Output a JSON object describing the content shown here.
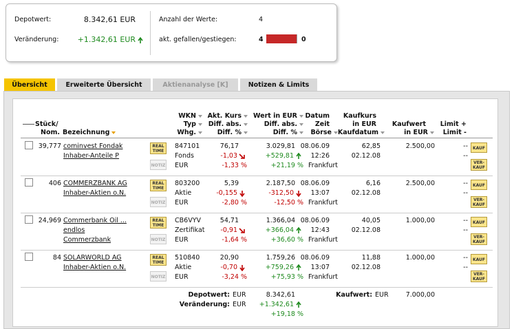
{
  "summary": {
    "depotwert_label": "Depotwert:",
    "depotwert": "8.342,61 EUR",
    "veraenderung_label": "Veränderung:",
    "veraenderung": "+1.342,61 EUR",
    "anzahl_label": "Anzahl der Werte:",
    "anzahl": 4,
    "gefallen_label": "akt. gefallen/gestiegen:",
    "gefallen": 4,
    "gestiegen": 0
  },
  "tabs": [
    "Übersicht",
    "Erweiterte Übersicht",
    "Aktienanalyse [K]",
    "Notizen & Limits"
  ],
  "table": {
    "headers": {
      "stueck": [
        "Stück/",
        "Nom."
      ],
      "bezeichnung": "Bezeichnung",
      "wkn": [
        "WKN",
        "Typ",
        "Whg."
      ],
      "kurs": [
        "Akt. Kurs",
        "Diff. abs.",
        "Diff. %"
      ],
      "wert": [
        "Wert in EUR",
        "Diff. abs.",
        "Diff. %"
      ],
      "datum": [
        "Datum",
        "Zeit",
        "Börse"
      ],
      "kaufkurs": [
        "Kaufkurs",
        "in EUR",
        "Kaufdatum"
      ],
      "kaufwert": [
        "Kaufwert",
        "in EUR"
      ],
      "limit": [
        "Limit +",
        "Limit -"
      ]
    },
    "buttons": {
      "realtime": [
        "REAL",
        "TIME"
      ],
      "notiz": "NOTIZ",
      "kauf": "KAUF",
      "verkauf": [
        "VER-",
        "KAUF"
      ]
    },
    "rows": [
      {
        "stueck": "39,777",
        "name": [
          "cominvest Fondak",
          "Inhaber-Anteile P"
        ],
        "wkn": "847101",
        "typ": "Fonds",
        "whg": "EUR",
        "kurs": "76,17",
        "kurs_diff": "-1,03",
        "kurs_pct": "-1,33 %",
        "wert": "3.029,81",
        "wert_diff": "+529,81",
        "wert_pct": "+21,19 %",
        "datum": "08.06.09",
        "zeit": "12:26",
        "boerse": "Frankfurt",
        "kaufkurs": "62,85",
        "kaufdatum": "02.12.08",
        "kaufwert": "2.500,00",
        "limit_plus": "--",
        "limit_minus": "--"
      },
      {
        "stueck": "406",
        "name": [
          "COMMERZBANK AG",
          "Inhaber-Aktien o.N."
        ],
        "wkn": "803200",
        "typ": "Aktie",
        "whg": "EUR",
        "kurs": "5,39",
        "kurs_diff": "-0,155",
        "kurs_pct": "-2,80 %",
        "wert": "2.187,50",
        "wert_diff": "-312,50",
        "wert_pct": "-12,50 %",
        "datum": "08.06.09",
        "zeit": "13:07",
        "boerse": "Frankfurt",
        "kaufkurs": "6,16",
        "kaufdatum": "02.12.08",
        "kaufwert": "2.500,00",
        "limit_plus": "--",
        "limit_minus": "--"
      },
      {
        "stueck": "24,969",
        "name": [
          "Commerbank Oil ...",
          "endlos",
          "Commerzbank"
        ],
        "wkn": "CB6VYV",
        "typ": "Zertifikat",
        "whg": "EUR",
        "kurs": "54,71",
        "kurs_diff": "-0,91",
        "kurs_pct": "-1,64 %",
        "wert": "1.366,04",
        "wert_diff": "+366,04",
        "wert_pct": "+36,60 %",
        "datum": "08.06.09",
        "zeit": "12:43",
        "boerse": "Frankfurt",
        "kaufkurs": "40,05",
        "kaufdatum": "02.12.08",
        "kaufwert": "1.000,00",
        "limit_plus": "--",
        "limit_minus": "--"
      },
      {
        "stueck": "84",
        "name": [
          "SOLARWORLD AG",
          "Inhaber-Aktien o.N."
        ],
        "wkn": "510840",
        "typ": "Aktie",
        "whg": "EUR",
        "kurs": "20,90",
        "kurs_diff": "-0,70",
        "kurs_pct": "-3,24 %",
        "wert": "1.759,26",
        "wert_diff": "+759,26",
        "wert_pct": "+75,93 %",
        "datum": "08.06.09",
        "zeit": "13:07",
        "boerse": "Frankfurt",
        "kaufkurs": "11,88",
        "kaufdatum": "02.12.08",
        "kaufwert": "1.000,00",
        "limit_plus": "--",
        "limit_minus": "--"
      }
    ],
    "footer": {
      "depotwert_label": "Depotwert:",
      "depotwert_whg": "EUR",
      "depotwert": "8.342,61",
      "veraenderung_label": "Veränderung:",
      "veraenderung_whg": "EUR",
      "veraenderung": "+1.342,61",
      "veraenderung_pct": "+19,18 %",
      "kaufwert_label": "Kaufwert:",
      "kaufwert_whg": "EUR",
      "kaufwert": "7.000,00"
    }
  }
}
